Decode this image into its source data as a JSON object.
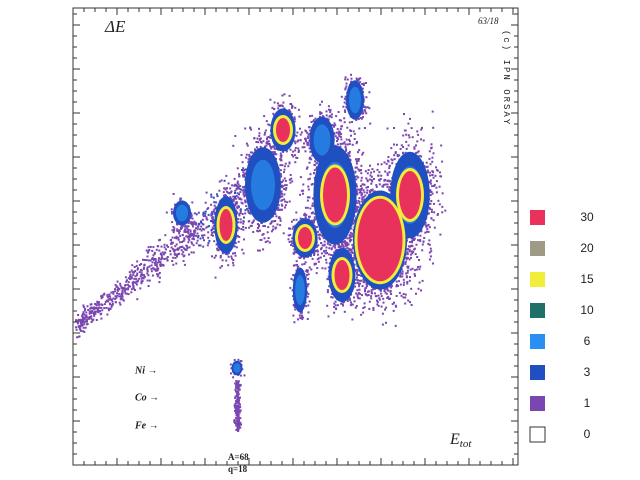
{
  "chart_data": {
    "type": "heatmap",
    "y_label": "ΔE",
    "x_label": "E",
    "x_label_sub": "tot",
    "annotations": [
      "Ni →",
      "Co →",
      "Fe →"
    ],
    "a_label": "A=68",
    "q_label": "q=18",
    "run_label": "63/18",
    "lab_label": "IPN ORSAY",
    "copyright": "(c)",
    "scale": [
      {
        "value": 30,
        "color": "#e8325c"
      },
      {
        "value": 20,
        "color": "#9e9a86"
      },
      {
        "value": 15,
        "color": "#f2ec3a"
      },
      {
        "value": 10,
        "color": "#1f6f6a"
      },
      {
        "value": 6,
        "color": "#2a8ff0"
      },
      {
        "value": 3,
        "color": "#1f4fc0"
      },
      {
        "value": 1,
        "color": "#7a46b0"
      },
      {
        "value": 0,
        "color": "#ffffff"
      }
    ]
  }
}
